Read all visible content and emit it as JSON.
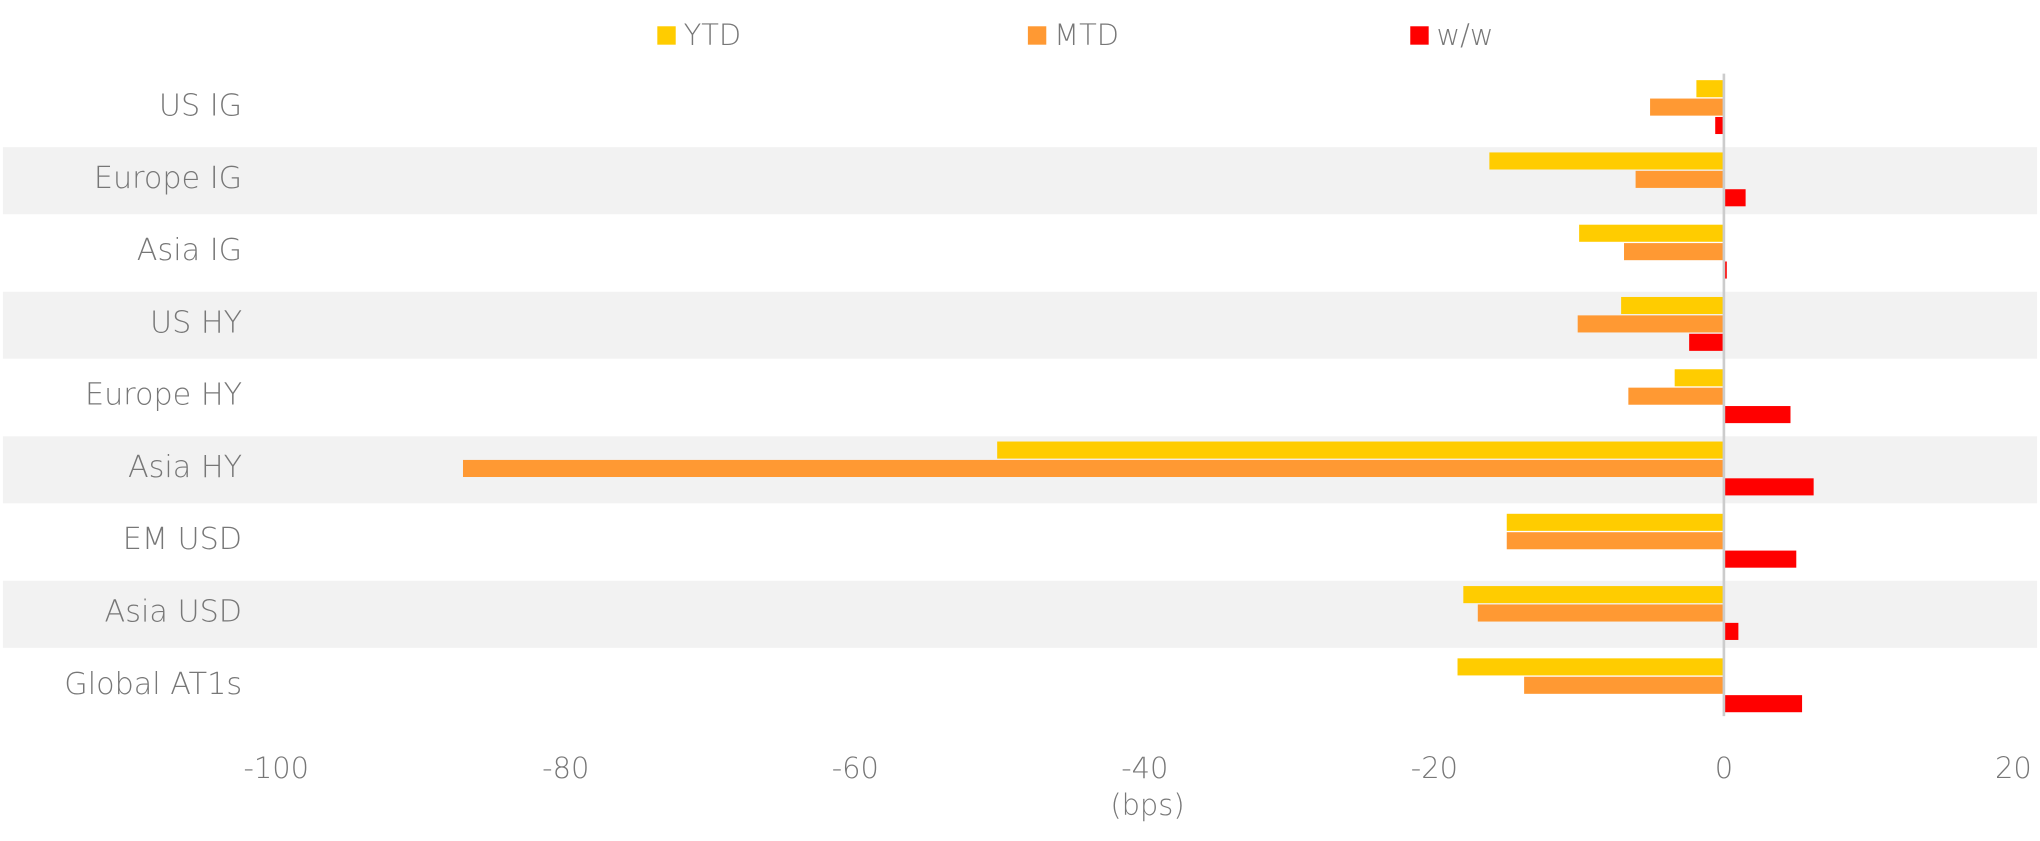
{
  "chart_data": {
    "type": "barh",
    "categories": [
      "US IG",
      "Europe IG",
      "Asia IG",
      "US HY",
      "Europe HY",
      "Asia HY",
      "EM USD",
      "Asia USD",
      "Global AT1s"
    ],
    "series": [
      {
        "name": "YTD",
        "color": "#ffcc00",
        "values": [
          -1.9,
          -16.2,
          -10,
          -7.1,
          -3.4,
          -50.2,
          -15,
          -18,
          -18.4
        ]
      },
      {
        "name": "MTD",
        "color": "#ff9933",
        "values": [
          -5.1,
          -6.1,
          -6.9,
          -10.1,
          -6.6,
          -87.1,
          -15,
          -17,
          -13.8
        ]
      },
      {
        "name": "w/w",
        "color": "#ff0000",
        "values": [
          -0.6,
          1.5,
          0.2,
          -2.4,
          4.6,
          6.2,
          5,
          1,
          5.4
        ]
      }
    ],
    "xlabel": "(bps)",
    "xlim": [
      -100,
      20
    ],
    "xticks": [
      -100,
      -80,
      -60,
      -40,
      -20,
      0,
      20
    ],
    "grid": false,
    "legend": "top"
  }
}
